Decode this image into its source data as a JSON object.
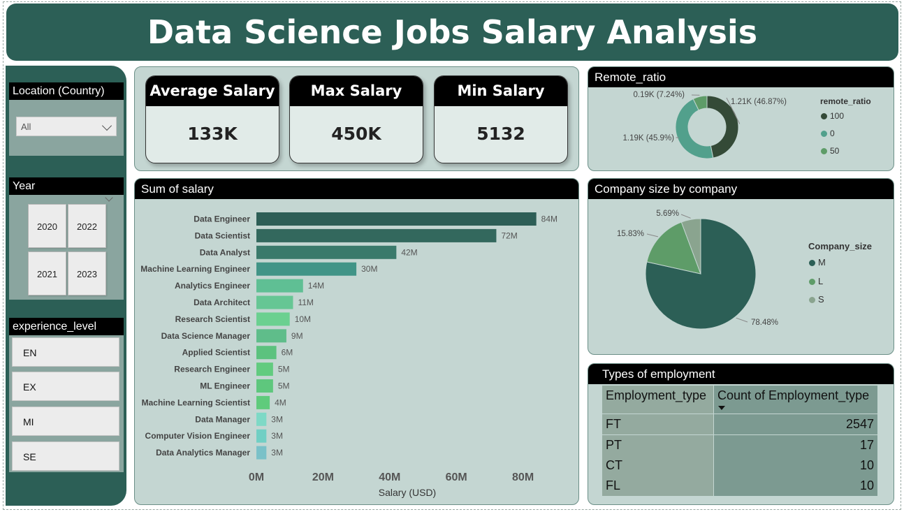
{
  "header": {
    "title": "Data Science Jobs Salary Analysis"
  },
  "filters": {
    "location": {
      "title": "Location (Country)",
      "value": "All"
    },
    "year": {
      "title": "Year",
      "options": [
        "2020",
        "2022",
        "2021",
        "2023"
      ]
    },
    "experience": {
      "title": "experience_level",
      "options": [
        "EN",
        "EX",
        "MI",
        "SE"
      ]
    }
  },
  "kpis": [
    {
      "label": "Average Salary",
      "value": "133K"
    },
    {
      "label": "Max Salary",
      "value": "450K"
    },
    {
      "label": "Min Salary",
      "value": "5132"
    }
  ],
  "colors": {
    "dark": "#2c5f56",
    "panel": "#c4d6d2"
  },
  "chart_data": [
    {
      "type": "bar",
      "orientation": "horizontal",
      "title": "Sum of salary",
      "xlabel": "Salary (USD)",
      "ylabel": "",
      "xlim": [
        0,
        90
      ],
      "x_ticks": [
        "0M",
        "20M",
        "40M",
        "60M",
        "80M"
      ],
      "x_tick_values": [
        0,
        20,
        40,
        60,
        80
      ],
      "categories": [
        "Data Engineer",
        "Data Scientist",
        "Data Analyst",
        "Machine Learning Engineer",
        "Analytics Engineer",
        "Data Architect",
        "Research Scientist",
        "Data Science Manager",
        "Applied Scientist",
        "Research Engineer",
        "ML Engineer",
        "Machine Learning Scientist",
        "Data Manager",
        "Computer Vision Engineer",
        "Data Analytics Manager"
      ],
      "values": [
        84,
        72,
        42,
        30,
        14,
        11,
        10,
        9,
        6,
        5,
        5,
        4,
        3,
        3,
        3
      ],
      "value_labels": [
        "84M",
        "72M",
        "42M",
        "30M",
        "14M",
        "11M",
        "10M",
        "9M",
        "6M",
        "5M",
        "5M",
        "4M",
        "3M",
        "3M",
        "3M"
      ],
      "colors": [
        "#2d5e56",
        "#33685d",
        "#3a7a6b",
        "#419487",
        "#5fbf94",
        "#66c694",
        "#6bd090",
        "#5fbd8a",
        "#5cc27e",
        "#62cb7f",
        "#5ec77d",
        "#5fcb7c",
        "#7ed9c6",
        "#71cfc4",
        "#7ac1c8"
      ]
    },
    {
      "type": "pie",
      "variant": "donut",
      "title": "Remote_ratio",
      "legend_title": "remote_ratio",
      "legend_position": "right",
      "slices": [
        {
          "label": "100",
          "value": 46.87,
          "text": "1.21K (46.87%)",
          "color": "#344a37"
        },
        {
          "label": "0",
          "value": 45.9,
          "text": "1.19K (45.9%)",
          "color": "#52a08c"
        },
        {
          "label": "50",
          "value": 7.24,
          "text": "0.19K (7.24%)",
          "color": "#5e9c68"
        }
      ]
    },
    {
      "type": "pie",
      "title": "Company size by company",
      "legend_title": "Company_size",
      "legend_position": "right",
      "slices": [
        {
          "label": "M",
          "value": 78.48,
          "text": "78.48%",
          "color": "#2c5f56"
        },
        {
          "label": "L",
          "value": 15.83,
          "text": "15.83%",
          "color": "#5e9c68"
        },
        {
          "label": "S",
          "value": 5.69,
          "text": "5.69%",
          "color": "#8aa48f"
        }
      ]
    },
    {
      "type": "table",
      "title": "Types of employment",
      "columns": [
        "Employment_type",
        "Count of Employment_type"
      ],
      "rows": [
        [
          "FT",
          "2547"
        ],
        [
          "PT",
          "17"
        ],
        [
          "CT",
          "10"
        ],
        [
          "FL",
          "10"
        ]
      ]
    }
  ]
}
